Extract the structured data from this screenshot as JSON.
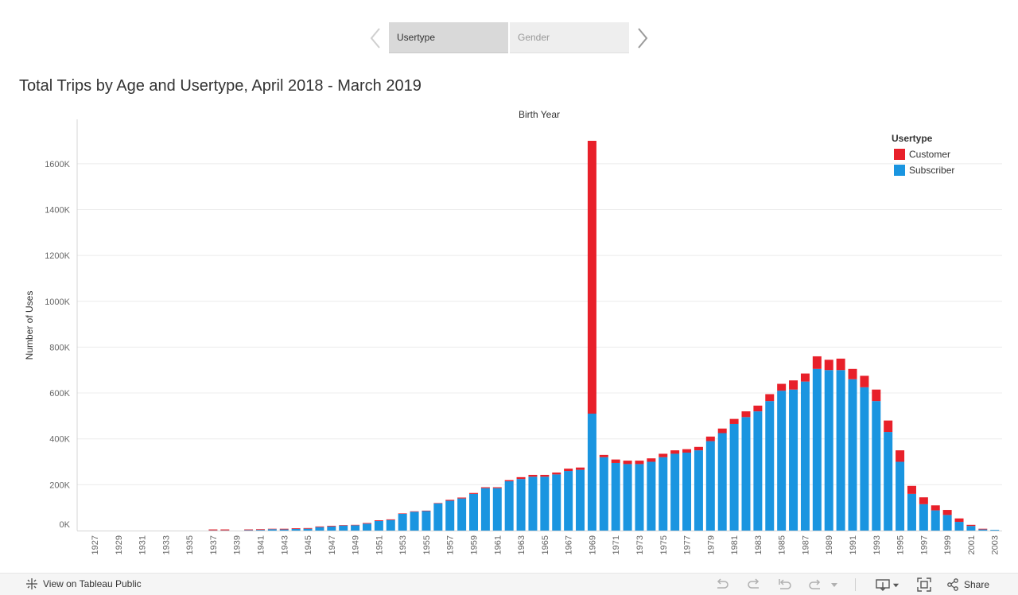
{
  "story": {
    "tabs": [
      {
        "label": "Usertype",
        "active": true
      },
      {
        "label": "Gender",
        "active": false
      }
    ]
  },
  "title": "Total Trips by Age and Usertype, April 2018 - March 2019",
  "footer": {
    "view_label": "View on Tableau Public",
    "share_label": "Share"
  },
  "colors": {
    "customer": "#e8202a",
    "subscriber": "#1a95e0"
  },
  "chart_data": {
    "type": "bar",
    "stacked": true,
    "title": "Total Trips by Age and Usertype, April 2018 - March 2019",
    "column_header": "Birth Year",
    "xlabel": "",
    "ylabel": "Number of Uses",
    "ylim": [
      0,
      1700
    ],
    "y_unit": "K",
    "y_ticks": [
      0,
      200,
      400,
      600,
      800,
      1000,
      1200,
      1400,
      1600
    ],
    "y_tick_labels": [
      "0K",
      "200K",
      "400K",
      "600K",
      "800K",
      "1000K",
      "1200K",
      "1400K",
      "1600K"
    ],
    "x_ticks_shown": [
      "1927",
      "1929",
      "1931",
      "1933",
      "1935",
      "1937",
      "1939",
      "1941",
      "1943",
      "1945",
      "1947",
      "1949",
      "1951",
      "1953",
      "1955",
      "1957",
      "1959",
      "1961",
      "1963",
      "1965",
      "1967",
      "1969",
      "1971",
      "1973",
      "1975",
      "1977",
      "1979",
      "1981",
      "1983",
      "1985",
      "1987",
      "1989",
      "1991",
      "1993",
      "1995",
      "1997",
      "1999",
      "2001",
      "2003"
    ],
    "legend_title": "Usertype",
    "legend_position": "top-right",
    "grid": true,
    "categories": [
      "1927",
      "1928",
      "1929",
      "1930",
      "1931",
      "1932",
      "1933",
      "1934",
      "1935",
      "1936",
      "1937",
      "1938",
      "1939",
      "1940",
      "1941",
      "1942",
      "1943",
      "1944",
      "1945",
      "1946",
      "1947",
      "1948",
      "1949",
      "1950",
      "1951",
      "1952",
      "1953",
      "1954",
      "1955",
      "1956",
      "1957",
      "1958",
      "1959",
      "1960",
      "1961",
      "1962",
      "1963",
      "1964",
      "1965",
      "1966",
      "1967",
      "1968",
      "1969",
      "1970",
      "1971",
      "1972",
      "1973",
      "1974",
      "1975",
      "1976",
      "1977",
      "1978",
      "1979",
      "1980",
      "1981",
      "1982",
      "1983",
      "1984",
      "1985",
      "1986",
      "1987",
      "1988",
      "1989",
      "1990",
      "1991",
      "1992",
      "1993",
      "1994",
      "1995",
      "1996",
      "1997",
      "1998",
      "1999",
      "2000",
      "2001",
      "2002",
      "2003"
    ],
    "series": [
      {
        "name": "Subscriber",
        "values": [
          0,
          0,
          0,
          0,
          0,
          0,
          0,
          0,
          0,
          0,
          1,
          1,
          0,
          2,
          3,
          6,
          5,
          7,
          8,
          15,
          18,
          22,
          23,
          30,
          42,
          46,
          73,
          82,
          85,
          118,
          130,
          140,
          160,
          185,
          185,
          215,
          225,
          235,
          235,
          245,
          260,
          265,
          510,
          320,
          295,
          290,
          290,
          300,
          320,
          335,
          340,
          350,
          390,
          425,
          465,
          495,
          520,
          565,
          610,
          615,
          650,
          705,
          700,
          700,
          660,
          625,
          565,
          430,
          300,
          160,
          115,
          88,
          68,
          38,
          20,
          5,
          3
        ]
      },
      {
        "name": "Customer",
        "values": [
          0,
          0,
          0,
          0,
          0,
          0,
          0,
          0,
          0,
          0,
          4,
          4,
          0,
          3,
          3,
          2,
          3,
          3,
          3,
          3,
          3,
          2,
          2,
          3,
          3,
          3,
          2,
          2,
          2,
          2,
          4,
          4,
          4,
          4,
          4,
          5,
          8,
          8,
          8,
          8,
          10,
          10,
          1190,
          10,
          15,
          15,
          15,
          15,
          15,
          15,
          15,
          15,
          20,
          20,
          22,
          25,
          25,
          30,
          30,
          40,
          35,
          55,
          45,
          50,
          45,
          50,
          50,
          50,
          50,
          35,
          30,
          22,
          22,
          15,
          5,
          3,
          0
        ]
      }
    ]
  }
}
